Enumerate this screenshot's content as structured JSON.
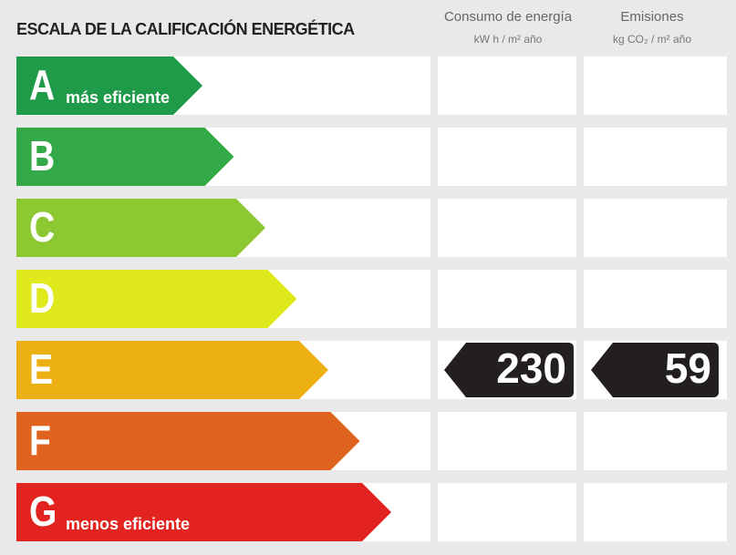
{
  "header": {
    "title": "ESCALA DE LA CALIFICACIÓN ENERGÉTICA"
  },
  "columns": [
    {
      "title": "Consumo de energía",
      "unit": "kW h / m² año"
    },
    {
      "title": "Emisiones",
      "unit": "kg CO₂ / m² año"
    }
  ],
  "rows": [
    {
      "letter": "A",
      "label": "más eficiente",
      "color": "#1f9a48"
    },
    {
      "letter": "B",
      "color": "#33aa47"
    },
    {
      "letter": "C",
      "color": "#8cc832"
    },
    {
      "letter": "D",
      "color": "#dfe91c"
    },
    {
      "letter": "E",
      "color": "#edb012",
      "consumption": 230,
      "emissions": 59
    },
    {
      "letter": "F",
      "color": "#e0641f"
    },
    {
      "letter": "G",
      "label": "menos eficiente",
      "color": "#e2231f"
    }
  ]
}
